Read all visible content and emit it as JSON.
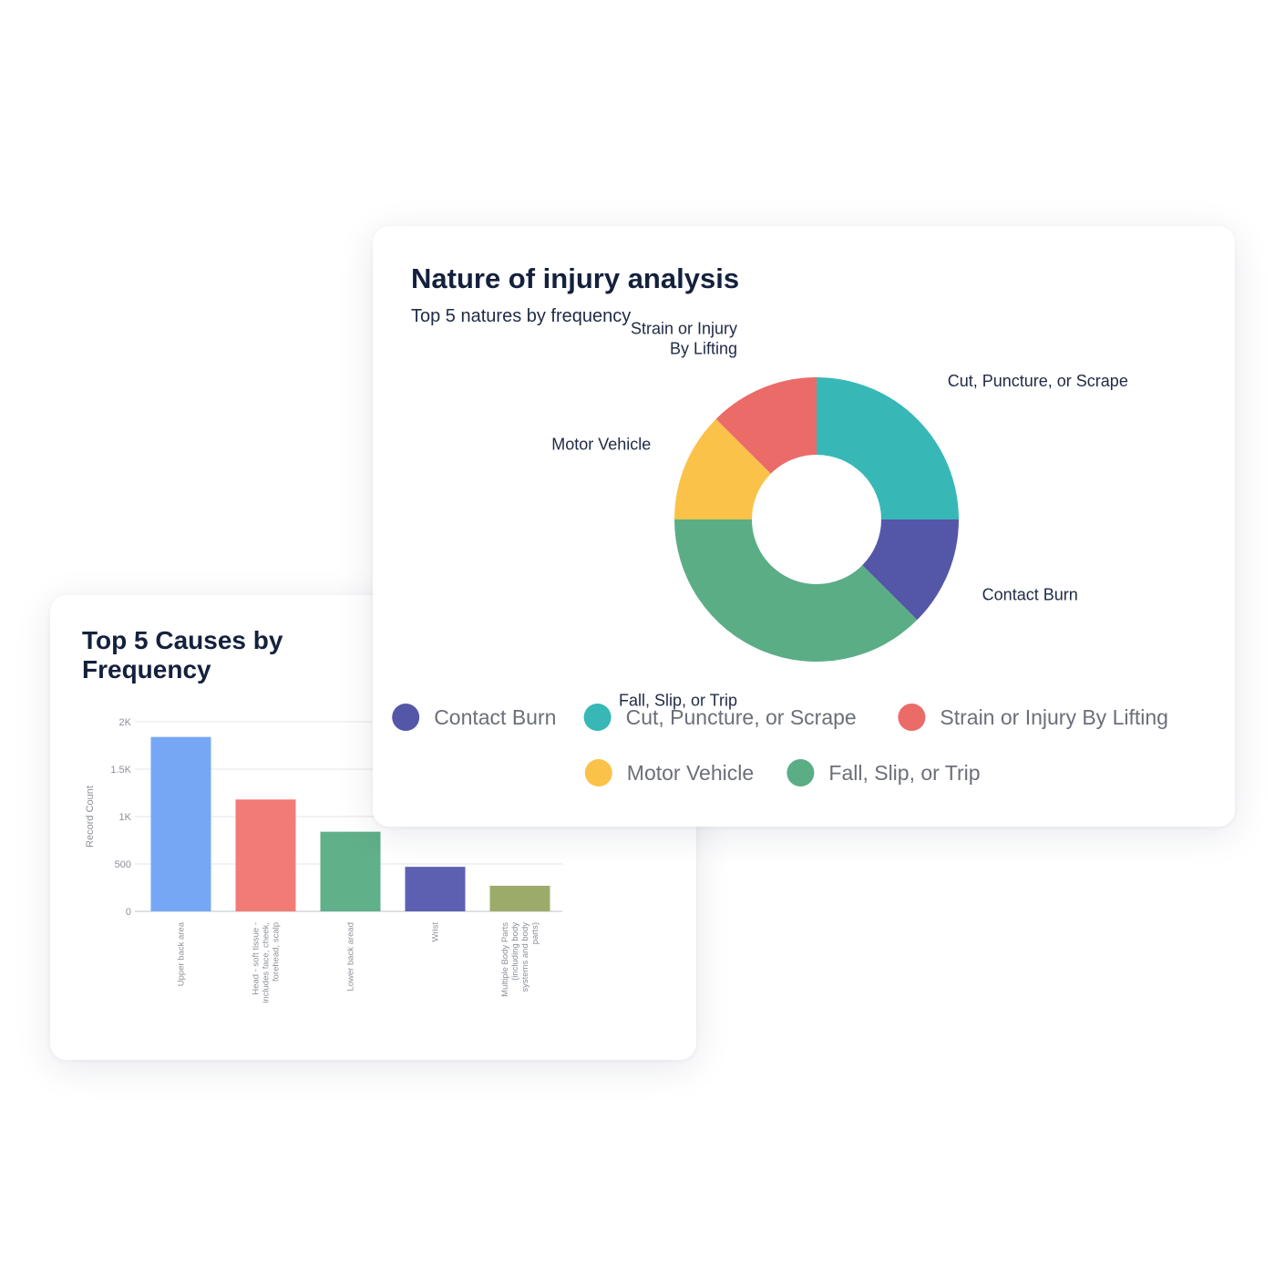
{
  "bar_card": {
    "title_line1": "Top 5 Causes by",
    "title_line2": "Frequency"
  },
  "donut_card": {
    "title": "Nature of injury analysis",
    "subtitle": "Top 5 natures by frequency"
  },
  "chart_data": [
    {
      "type": "pie",
      "title": "Nature of injury analysis",
      "subtitle": "Top 5 natures by frequency",
      "donut": true,
      "categories": [
        "Contact Burn",
        "Fall, Slip, or Trip",
        "Motor Vehicle",
        "Strain or Injury By Lifting",
        "Cut, Puncture, or Scrape"
      ],
      "values": [
        12.5,
        37.5,
        12.5,
        12.5,
        25
      ],
      "colors": [
        "#5457a8",
        "#5bad85",
        "#fbc24a",
        "#eb6b69",
        "#37b8b7"
      ],
      "slice_labels": [
        [
          "Contact Burn"
        ],
        [
          "Fall, Slip, or Trip"
        ],
        [
          "Motor Vehicle"
        ],
        [
          "Strain or Injury",
          "By Lifting"
        ],
        [
          "Cut, Puncture, or Scrape"
        ]
      ],
      "legend": [
        {
          "name": "Contact Burn",
          "color": "#5457a8"
        },
        {
          "name": "Cut, Puncture, or Scrape",
          "color": "#37b8b7"
        },
        {
          "name": "Strain or Injury By Lifting",
          "color": "#eb6b69"
        },
        {
          "name": "Motor Vehicle",
          "color": "#fbc24a"
        },
        {
          "name": "Fall, Slip, or Trip",
          "color": "#5bad85"
        }
      ],
      "legend_position": "bottom"
    },
    {
      "type": "bar",
      "title": "Top 5 Causes by Frequency",
      "ylabel": "Record Count",
      "xlabel": "",
      "ylim": [
        0,
        2000
      ],
      "yticks": [
        0,
        500,
        1000,
        1500,
        2000
      ],
      "ytick_labels": [
        "0",
        "500",
        "1K",
        "1.5K",
        "2K"
      ],
      "grid": true,
      "categories": [
        "Upper back area",
        "Head - soft tissue - includes face, cheek, forehead, scalp",
        "Lower back aread",
        "Wrist",
        "Multiple Body Parts (including body systems and body parts)"
      ],
      "category_lines": [
        [
          "Upper back area"
        ],
        [
          "Head - soft tissue -",
          "includes face, cheek,",
          "forehead, scalp"
        ],
        [
          "Lower back aread"
        ],
        [
          "Wrist"
        ],
        [
          "Multiple Body Parts",
          "(including body",
          "systems and body",
          "parts)"
        ]
      ],
      "values": [
        1840,
        1180,
        840,
        470,
        270
      ],
      "colors": [
        "#76a7f5",
        "#f37b76",
        "#60b089",
        "#5d60b1",
        "#9dab6a"
      ]
    }
  ]
}
